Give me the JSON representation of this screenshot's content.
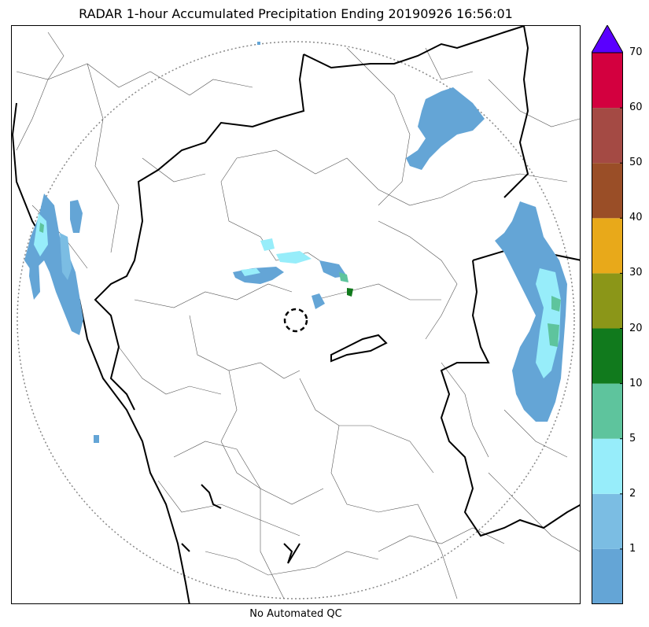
{
  "title": "RADAR 1-hour Accumulated Precipitation Ending 20190926 16:56:01",
  "footer_note": "No Automated QC",
  "colorbar": {
    "extend_max_color": "#5a00ff",
    "levels": [
      {
        "from": 0,
        "to": 1,
        "color": "#64a5d6"
      },
      {
        "from": 1,
        "to": 2,
        "color": "#7bbde3"
      },
      {
        "from": 2,
        "to": 5,
        "color": "#97edfa"
      },
      {
        "from": 5,
        "to": 10,
        "color": "#5ec49d"
      },
      {
        "from": 10,
        "to": 20,
        "color": "#117a1d"
      },
      {
        "from": 20,
        "to": 30,
        "color": "#8b9618"
      },
      {
        "from": 30,
        "to": 40,
        "color": "#e8a91a"
      },
      {
        "from": 40,
        "to": 50,
        "color": "#9a4e27"
      },
      {
        "from": 50,
        "to": 60,
        "color": "#a44a44"
      },
      {
        "from": 60,
        "to": 70,
        "color": "#d3003f"
      }
    ],
    "tick_labels": [
      "1",
      "2",
      "5",
      "10",
      "20",
      "30",
      "40",
      "50",
      "60",
      "70"
    ]
  },
  "map": {
    "range_ring_color": "#888888",
    "border_color": "#000000",
    "district_color": "#555555"
  }
}
